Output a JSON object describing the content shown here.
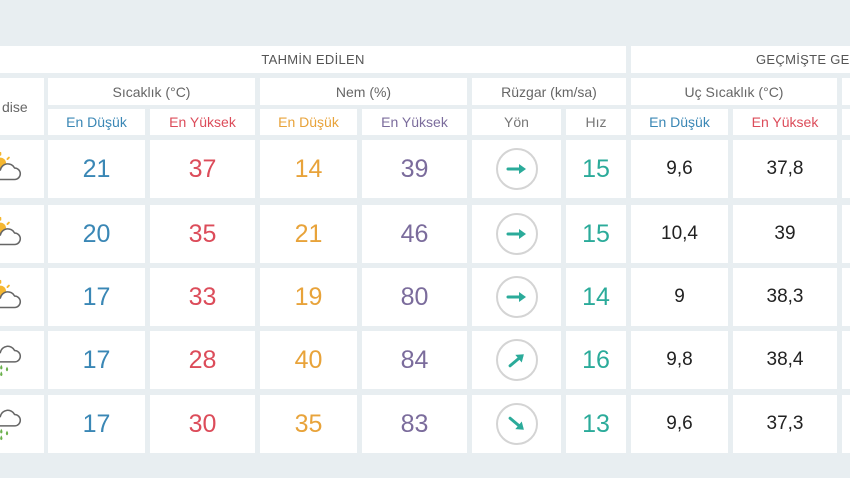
{
  "headers": {
    "forecast_group": "TAHMİN EDİLEN",
    "history_group": "GEÇMİŞTE GE",
    "condition": "dise",
    "temperature": "Sıcaklık (°C)",
    "humidity": "Nem (%)",
    "wind": "Rüzgar (km/sa)",
    "extreme_temp": "Uç Sıcaklık (°C)",
    "min": "En Düşük",
    "max": "En Yüksek",
    "direction": "Yön",
    "speed": "Hız"
  },
  "colors": {
    "min": "#3a87b5",
    "max": "#dc4c5a",
    "humidity_min": "#e8a33a",
    "humidity_max": "#7b6c9c",
    "wind": "#2bab9a"
  },
  "rows": [
    {
      "icon": "partly-cloudy-icon",
      "temp_min": "21",
      "temp_max": "37",
      "hum_min": "14",
      "hum_max": "39",
      "wind_dir_deg": 0,
      "wind_speed": "15",
      "hist_min": "9,6",
      "hist_max": "37,8"
    },
    {
      "icon": "partly-cloudy-icon",
      "temp_min": "20",
      "temp_max": "35",
      "hum_min": "21",
      "hum_max": "46",
      "wind_dir_deg": 0,
      "wind_speed": "15",
      "hist_min": "10,4",
      "hist_max": "39"
    },
    {
      "icon": "partly-cloudy-icon",
      "temp_min": "17",
      "temp_max": "33",
      "hum_min": "19",
      "hum_max": "80",
      "wind_dir_deg": 0,
      "wind_speed": "14",
      "hist_min": "9",
      "hist_max": "38,3"
    },
    {
      "icon": "rain-cloud-icon",
      "temp_min": "17",
      "temp_max": "28",
      "hum_min": "40",
      "hum_max": "84",
      "wind_dir_deg": -40,
      "wind_speed": "16",
      "hist_min": "9,8",
      "hist_max": "38,4"
    },
    {
      "icon": "rain-cloud-icon",
      "temp_min": "17",
      "temp_max": "30",
      "hum_min": "35",
      "hum_max": "83",
      "wind_dir_deg": 40,
      "wind_speed": "13",
      "hist_min": "9,6",
      "hist_max": "37,3"
    }
  ]
}
